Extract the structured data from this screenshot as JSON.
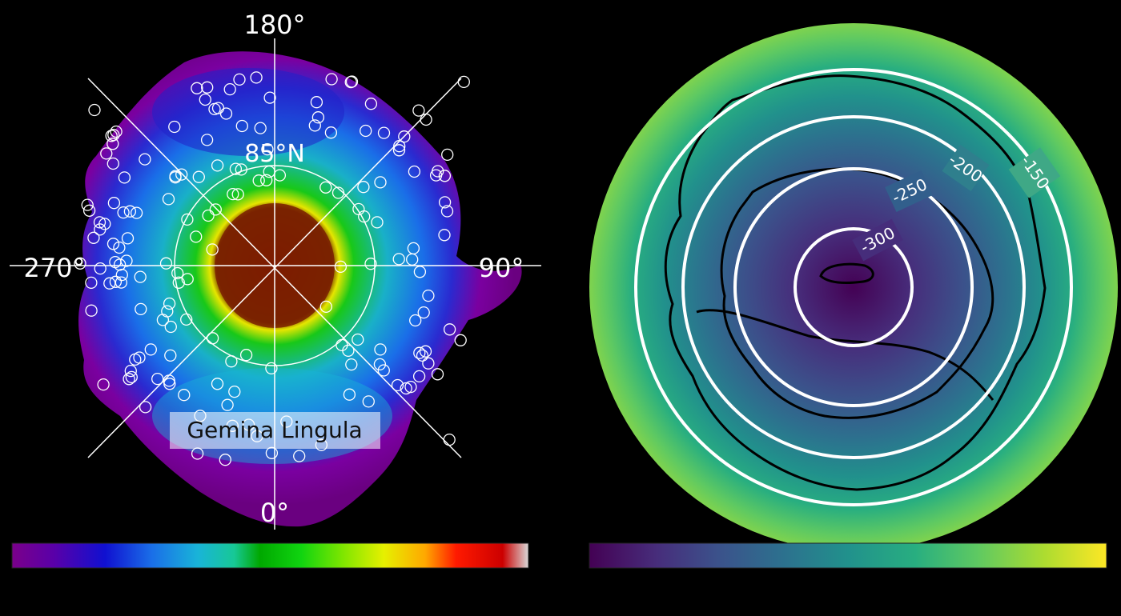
{
  "left_panel": {
    "labels": {
      "lon_180": "180°",
      "lon_90": "90°",
      "lon_270": "270°",
      "lon_0": "0°",
      "lat_85": "85°N",
      "region_name": "Gemina Lingula"
    },
    "colorbar_colors": [
      "#7a008a",
      "#5a00a8",
      "#1010d0",
      "#1a6ee8",
      "#19b4d8",
      "#17c896",
      "#00a800",
      "#10d410",
      "#7ee600",
      "#e6f000",
      "#ffa800",
      "#ff1a00",
      "#cc0000",
      "#d8d8d8"
    ]
  },
  "right_panel": {
    "contour_labels": [
      "-150",
      "-200",
      "-250",
      "-300"
    ],
    "colorbar_colors": [
      "#440154",
      "#472d7b",
      "#3b528b",
      "#2c728e",
      "#21918c",
      "#28ae80",
      "#5ec962",
      "#addc30",
      "#fde725"
    ]
  }
}
